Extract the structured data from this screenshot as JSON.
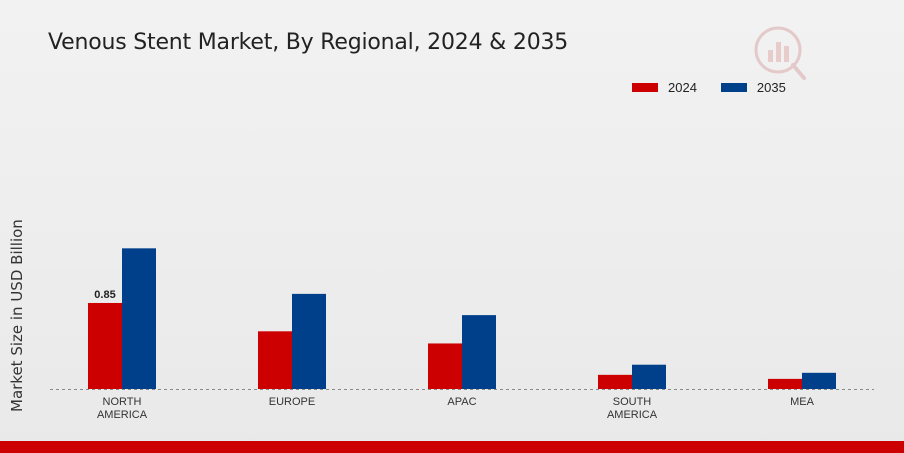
{
  "chart_data": {
    "type": "bar",
    "title": "Venous Stent Market, By Regional, 2024 & 2035",
    "xlabel": "",
    "ylabel": "Market Size in USD Billion",
    "categories": [
      "NORTH\nAMERICA",
      "EUROPE",
      "APAC",
      "SOUTH\nAMERICA",
      "MEA"
    ],
    "series": [
      {
        "name": "2024",
        "color": "#cc0000",
        "values": [
          0.85,
          0.57,
          0.45,
          0.14,
          0.1
        ]
      },
      {
        "name": "2035",
        "color": "#003f8a",
        "values": [
          1.39,
          0.94,
          0.73,
          0.24,
          0.16
        ]
      }
    ],
    "data_labels": [
      {
        "series": 0,
        "category": 0,
        "text": "0.85"
      }
    ],
    "ylim": [
      0,
      2.5
    ],
    "grid": false,
    "legend_position": "top-right"
  }
}
